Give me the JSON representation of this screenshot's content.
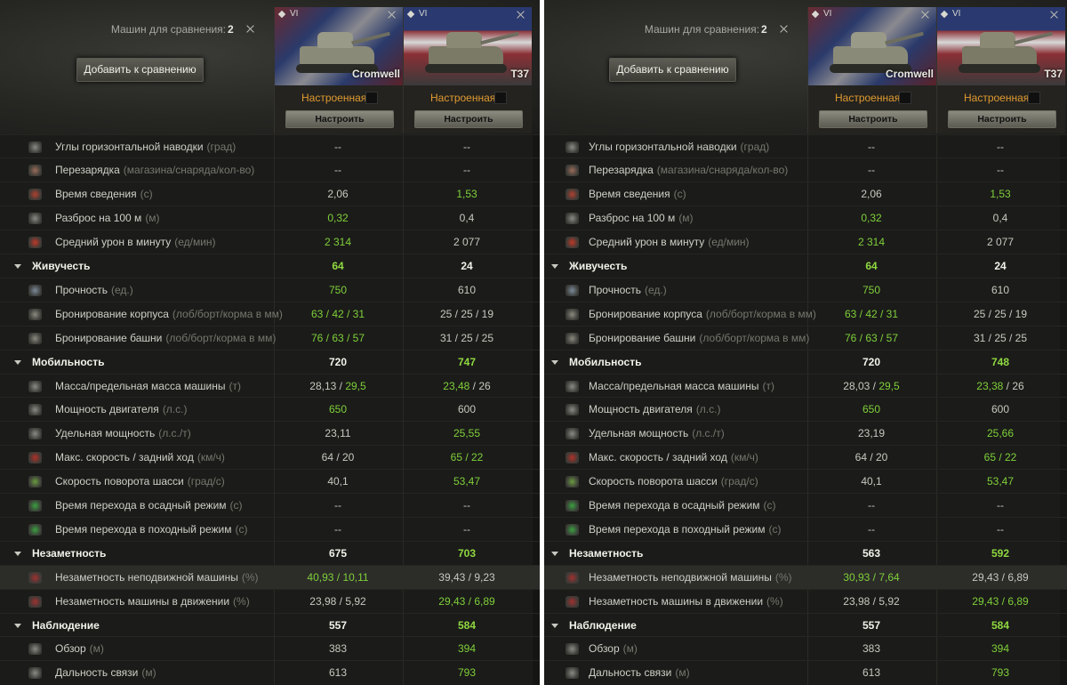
{
  "header": {
    "count_label": "Машин для сравнения:",
    "count": "2",
    "add_button": "Добавить к сравнению",
    "status": "Настроенная",
    "configure": "Настроить",
    "tanks": [
      {
        "tier": "VI",
        "name": "Cromwell"
      },
      {
        "tier": "VI",
        "name": "T37"
      }
    ]
  },
  "rows": [
    {
      "label": "Углы горизонтальной наводки",
      "unit": "(град)"
    },
    {
      "label": "Перезарядка",
      "unit": "(магазина/снаряда/кол-во)"
    },
    {
      "label": "Время сведения",
      "unit": "(с)"
    },
    {
      "label": "Разброс на 100 м",
      "unit": "(м)"
    },
    {
      "label": "Средний урон в минуту",
      "unit": "(ед/мин)"
    },
    {
      "section": true,
      "label": "Живучесть"
    },
    {
      "label": "Прочность",
      "unit": "(ед.)"
    },
    {
      "label": "Бронирование корпуса",
      "unit": "(лоб/борт/корма в мм)"
    },
    {
      "label": "Бронирование башни",
      "unit": "(лоб/борт/корма в мм)"
    },
    {
      "section": true,
      "label": "Мобильность"
    },
    {
      "label": "Масса/предельная масса машины",
      "unit": "(т)"
    },
    {
      "label": "Мощность двигателя",
      "unit": "(л.с.)"
    },
    {
      "label": "Удельная мощность",
      "unit": "(л.с./т)"
    },
    {
      "label": "Макс. скорость / задний ход",
      "unit": "(км/ч)"
    },
    {
      "label": "Скорость поворота шасси",
      "unit": "(град/с)"
    },
    {
      "label": "Время перехода в осадный режим",
      "unit": "(с)"
    },
    {
      "label": "Время перехода в походный режим",
      "unit": "(с)"
    },
    {
      "section": true,
      "label": "Незаметность"
    },
    {
      "label": "Незаметность неподвижной машины",
      "unit": "(%)"
    },
    {
      "label": "Незаметность машины в движении",
      "unit": "(%)"
    },
    {
      "section": true,
      "label": "Наблюдение"
    },
    {
      "label": "Обзор",
      "unit": "(м)"
    },
    {
      "label": "Дальность связи",
      "unit": "(м)"
    }
  ],
  "panels": [
    {
      "cells": [
        [
          [
            {
              "t": "--"
            }
          ],
          [
            {
              "t": "--"
            }
          ]
        ],
        [
          [
            {
              "t": "--"
            }
          ],
          [
            {
              "t": "--"
            }
          ]
        ],
        [
          [
            {
              "t": "2,06"
            }
          ],
          [
            {
              "t": "1,53",
              "better": true
            }
          ]
        ],
        [
          [
            {
              "t": "0,32",
              "better": true
            }
          ],
          [
            {
              "t": "0,4"
            }
          ]
        ],
        [
          [
            {
              "t": "2 314",
              "better": true
            }
          ],
          [
            {
              "t": "2 077"
            }
          ]
        ],
        [
          [
            {
              "t": "64",
              "better": true
            }
          ],
          [
            {
              "t": "24"
            }
          ]
        ],
        [
          [
            {
              "t": "750",
              "better": true
            }
          ],
          [
            {
              "t": "610"
            }
          ]
        ],
        [
          [
            {
              "t": "63 / 42 / 31",
              "better": true
            }
          ],
          [
            {
              "t": "25 / 25 / 19"
            }
          ]
        ],
        [
          [
            {
              "t": "76 / 63 / 57",
              "better": true
            }
          ],
          [
            {
              "t": "31 / 25 / 25"
            }
          ]
        ],
        [
          [
            {
              "t": "720"
            }
          ],
          [
            {
              "t": "747",
              "better": true
            }
          ]
        ],
        [
          [
            {
              "t": "28,13 / "
            },
            {
              "t": "29,5",
              "better": true
            }
          ],
          [
            {
              "t": "23,48",
              "better": true
            },
            {
              "t": " / 26"
            }
          ]
        ],
        [
          [
            {
              "t": "650",
              "better": true
            }
          ],
          [
            {
              "t": "600"
            }
          ]
        ],
        [
          [
            {
              "t": "23,11"
            }
          ],
          [
            {
              "t": "25,55",
              "better": true
            }
          ]
        ],
        [
          [
            {
              "t": "64 / 20"
            }
          ],
          [
            {
              "t": "65 / 22",
              "better": true
            }
          ]
        ],
        [
          [
            {
              "t": "40,1"
            }
          ],
          [
            {
              "t": "53,47",
              "better": true
            }
          ]
        ],
        [
          [
            {
              "t": "--"
            }
          ],
          [
            {
              "t": "--"
            }
          ]
        ],
        [
          [
            {
              "t": "--"
            }
          ],
          [
            {
              "t": "--"
            }
          ]
        ],
        [
          [
            {
              "t": "675"
            }
          ],
          [
            {
              "t": "703",
              "better": true
            }
          ]
        ],
        [
          [
            {
              "t": "40,93 / 10,11",
              "better": true
            }
          ],
          [
            {
              "t": "39,43 / 9,23"
            }
          ]
        ],
        [
          [
            {
              "t": "23,98 / 5,92"
            }
          ],
          [
            {
              "t": "29,43 / 6,89",
              "better": true
            }
          ]
        ],
        [
          [
            {
              "t": "557"
            }
          ],
          [
            {
              "t": "584",
              "better": true
            }
          ]
        ],
        [
          [
            {
              "t": "383"
            }
          ],
          [
            {
              "t": "394",
              "better": true
            }
          ]
        ],
        [
          [
            {
              "t": "613"
            }
          ],
          [
            {
              "t": "793",
              "better": true
            }
          ]
        ]
      ]
    },
    {
      "cells": [
        [
          [
            {
              "t": "--"
            }
          ],
          [
            {
              "t": "--"
            }
          ]
        ],
        [
          [
            {
              "t": "--"
            }
          ],
          [
            {
              "t": "--"
            }
          ]
        ],
        [
          [
            {
              "t": "2,06"
            }
          ],
          [
            {
              "t": "1,53",
              "better": true
            }
          ]
        ],
        [
          [
            {
              "t": "0,32",
              "better": true
            }
          ],
          [
            {
              "t": "0,4"
            }
          ]
        ],
        [
          [
            {
              "t": "2 314",
              "better": true
            }
          ],
          [
            {
              "t": "2 077"
            }
          ]
        ],
        [
          [
            {
              "t": "64",
              "better": true
            }
          ],
          [
            {
              "t": "24"
            }
          ]
        ],
        [
          [
            {
              "t": "750",
              "better": true
            }
          ],
          [
            {
              "t": "610"
            }
          ]
        ],
        [
          [
            {
              "t": "63 / 42 / 31",
              "better": true
            }
          ],
          [
            {
              "t": "25 / 25 / 19"
            }
          ]
        ],
        [
          [
            {
              "t": "76 / 63 / 57",
              "better": true
            }
          ],
          [
            {
              "t": "31 / 25 / 25"
            }
          ]
        ],
        [
          [
            {
              "t": "720"
            }
          ],
          [
            {
              "t": "748",
              "better": true
            }
          ]
        ],
        [
          [
            {
              "t": "28,03 / "
            },
            {
              "t": "29,5",
              "better": true
            }
          ],
          [
            {
              "t": "23,38",
              "better": true
            },
            {
              "t": " / 26"
            }
          ]
        ],
        [
          [
            {
              "t": "650",
              "better": true
            }
          ],
          [
            {
              "t": "600"
            }
          ]
        ],
        [
          [
            {
              "t": "23,19"
            }
          ],
          [
            {
              "t": "25,66",
              "better": true
            }
          ]
        ],
        [
          [
            {
              "t": "64 / 20"
            }
          ],
          [
            {
              "t": "65 / 22",
              "better": true
            }
          ]
        ],
        [
          [
            {
              "t": "40,1"
            }
          ],
          [
            {
              "t": "53,47",
              "better": true
            }
          ]
        ],
        [
          [
            {
              "t": "--"
            }
          ],
          [
            {
              "t": "--"
            }
          ]
        ],
        [
          [
            {
              "t": "--"
            }
          ],
          [
            {
              "t": "--"
            }
          ]
        ],
        [
          [
            {
              "t": "563"
            }
          ],
          [
            {
              "t": "592",
              "better": true
            }
          ]
        ],
        [
          [
            {
              "t": "30,93 / 7,64",
              "better": true
            }
          ],
          [
            {
              "t": "29,43 / 6,89"
            }
          ]
        ],
        [
          [
            {
              "t": "23,98 / 5,92"
            }
          ],
          [
            {
              "t": "29,43 / 6,89",
              "better": true
            }
          ]
        ],
        [
          [
            {
              "t": "557"
            }
          ],
          [
            {
              "t": "584",
              "better": true
            }
          ]
        ],
        [
          [
            {
              "t": "383"
            }
          ],
          [
            {
              "t": "394",
              "better": true
            }
          ]
        ],
        [
          [
            {
              "t": "613"
            }
          ],
          [
            {
              "t": "793",
              "better": true
            }
          ]
        ]
      ]
    }
  ]
}
